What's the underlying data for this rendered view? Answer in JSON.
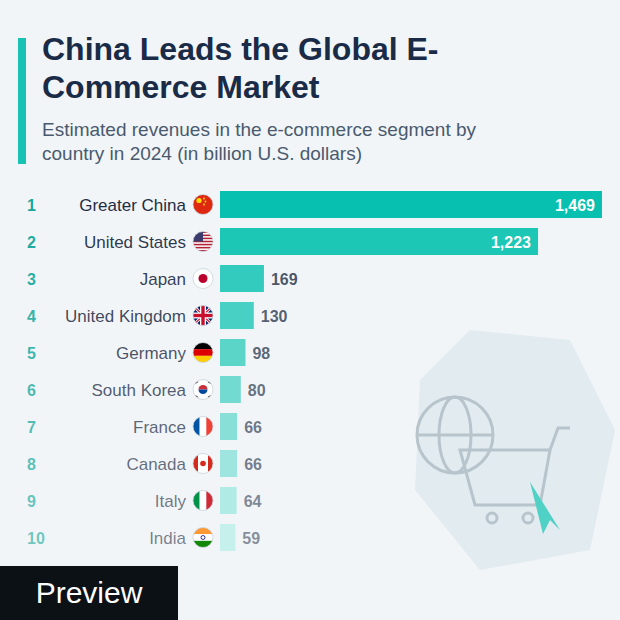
{
  "chart_data": {
    "type": "bar",
    "orientation": "horizontal",
    "title": "China Leads the Global E-Commerce Market",
    "subtitle": "Estimated revenues in the e-commerce segment by country in 2024 (in billion U.S. dollars)",
    "annotation": "Preview",
    "ranks": [
      1,
      2,
      3,
      4,
      5,
      6,
      7,
      8,
      9,
      10
    ],
    "categories": [
      "Greater China",
      "United States",
      "Japan",
      "United Kingdom",
      "Germany",
      "South Korea",
      "France",
      "Canada",
      "Italy",
      "India"
    ],
    "values": [
      1469,
      1223,
      169,
      130,
      98,
      80,
      66,
      66,
      64,
      59
    ],
    "colors": [
      "#07c0af",
      "#1cc7b6",
      "#33cbbd",
      "#47d0c3",
      "#5cd5c9",
      "#72dad0",
      "#88dfd7",
      "#9de5de",
      "#b1ebe5",
      "#c5f0eb"
    ],
    "xlim": [
      0,
      1469
    ],
    "data_labels": true,
    "tick_labels": "y",
    "grid": false
  }
}
